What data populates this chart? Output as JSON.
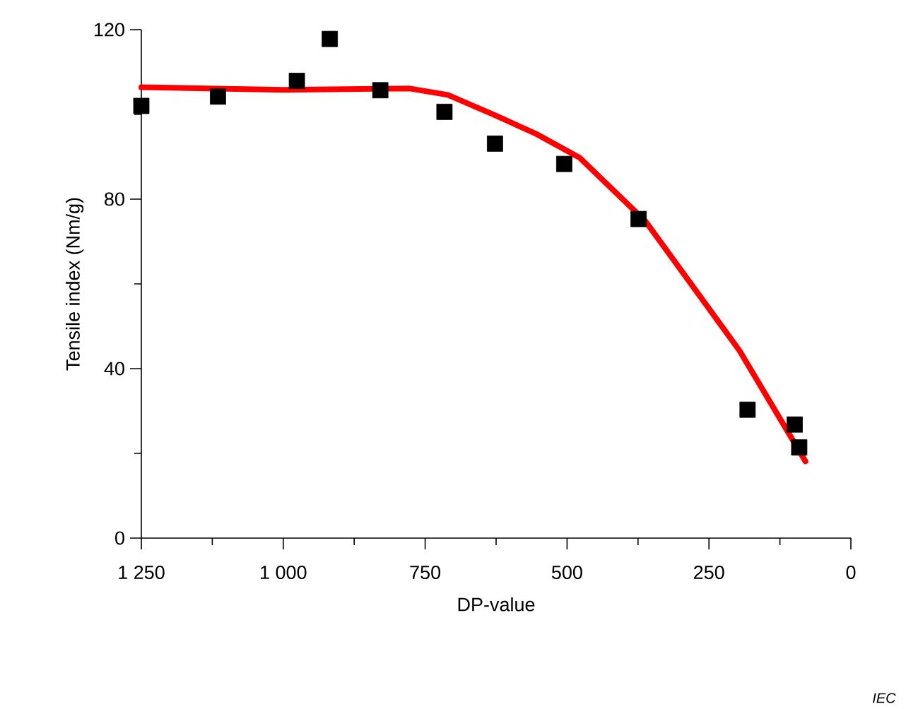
{
  "chart_data": {
    "type": "scatter",
    "xlabel": "DP-value",
    "ylabel": "Tensile index  (Nm/g)",
    "annotations": [
      "IEC"
    ],
    "xlim": [
      1250,
      0
    ],
    "ylim": [
      0,
      120
    ],
    "xticks": [
      {
        "value": 1250,
        "label": "1 250"
      },
      {
        "value": 1000,
        "label": "1 000"
      },
      750,
      500,
      250,
      0
    ],
    "yticks": [
      0,
      40,
      80,
      120
    ],
    "series": [
      {
        "color": "#000000",
        "marker": "square",
        "x": [
          1250,
          1115,
          976,
          918,
          829,
          716,
          627,
          505,
          374,
          182,
          99,
          91
        ],
        "values": [
          102,
          104.2,
          107.9,
          117.8,
          105.7,
          100.6,
          93.1,
          88.3,
          75.3,
          30.3,
          26.8,
          21.4
        ]
      },
      {
        "type": "line",
        "color": "#ff0000",
        "marker": "none",
        "line_style": "solid",
        "x": [
          1250,
          1000,
          777,
          710,
          627,
          553,
          478,
          362,
          196,
          80
        ],
        "values": [
          106.4,
          105.8,
          106.1,
          104.6,
          99.8,
          95.3,
          89.8,
          74.8,
          44.2,
          18.1
        ]
      }
    ],
    "grid": false
  }
}
